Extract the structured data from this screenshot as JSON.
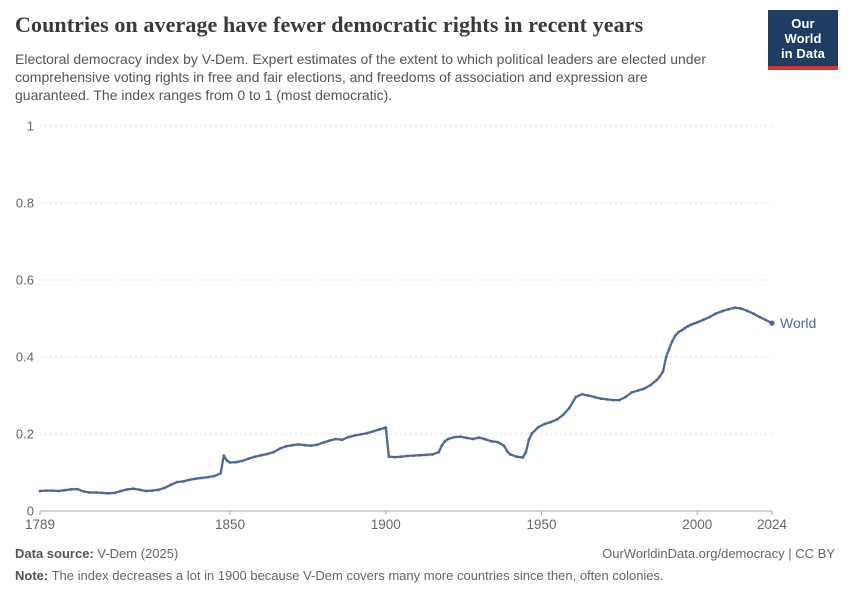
{
  "header": {
    "title": "Countries on average have fewer democratic rights in recent years",
    "subtitle_lines": [
      "Electoral democracy index by V-Dem. Expert estimates of the extent to which political leaders are elected under",
      "comprehensive voting rights in free and fair elections, and freedoms of association and expression are",
      "guaranteed. The index ranges from 0 to 1 (most democratic)."
    ],
    "logo": {
      "line1": "Our World",
      "line2": "in Data",
      "bg_color": "#1d3d63",
      "accent_color": "#d13832"
    }
  },
  "chart_data": {
    "type": "line",
    "title": "Countries on average have fewer democratic rights in recent years",
    "xlabel": "",
    "ylabel": "",
    "xlim": [
      1789,
      2024
    ],
    "ylim": [
      0,
      1
    ],
    "xticks": [
      1789,
      1850,
      1900,
      1950,
      2000,
      2024
    ],
    "yticks": [
      0,
      0.2,
      0.4,
      0.6,
      0.8,
      1
    ],
    "grid": "horizontal-dashed",
    "legend_position": "end-of-line",
    "colors": {
      "line": "#4c6a9c",
      "grid": "#dcdcdc",
      "axis": "#a8a8a8",
      "tick_label": "#666666"
    },
    "series": [
      {
        "name": "World",
        "color": "#4c6a9c",
        "points": [
          [
            1789,
            0.052
          ],
          [
            1791,
            0.053
          ],
          [
            1793,
            0.053
          ],
          [
            1795,
            0.052
          ],
          [
            1797,
            0.054
          ],
          [
            1799,
            0.056
          ],
          [
            1801,
            0.057
          ],
          [
            1803,
            0.051
          ],
          [
            1805,
            0.048
          ],
          [
            1807,
            0.048
          ],
          [
            1809,
            0.047
          ],
          [
            1811,
            0.046
          ],
          [
            1813,
            0.047
          ],
          [
            1815,
            0.052
          ],
          [
            1817,
            0.056
          ],
          [
            1819,
            0.058
          ],
          [
            1821,
            0.055
          ],
          [
            1823,
            0.052
          ],
          [
            1825,
            0.053
          ],
          [
            1827,
            0.055
          ],
          [
            1829,
            0.06
          ],
          [
            1831,
            0.068
          ],
          [
            1833,
            0.075
          ],
          [
            1835,
            0.077
          ],
          [
            1837,
            0.081
          ],
          [
            1839,
            0.084
          ],
          [
            1841,
            0.086
          ],
          [
            1843,
            0.088
          ],
          [
            1845,
            0.091
          ],
          [
            1847,
            0.098
          ],
          [
            1848,
            0.144
          ],
          [
            1849,
            0.131
          ],
          [
            1850,
            0.126
          ],
          [
            1852,
            0.127
          ],
          [
            1854,
            0.13
          ],
          [
            1856,
            0.136
          ],
          [
            1858,
            0.141
          ],
          [
            1860,
            0.145
          ],
          [
            1862,
            0.148
          ],
          [
            1864,
            0.153
          ],
          [
            1866,
            0.162
          ],
          [
            1868,
            0.168
          ],
          [
            1870,
            0.171
          ],
          [
            1872,
            0.173
          ],
          [
            1874,
            0.171
          ],
          [
            1876,
            0.17
          ],
          [
            1878,
            0.172
          ],
          [
            1880,
            0.178
          ],
          [
            1882,
            0.183
          ],
          [
            1884,
            0.187
          ],
          [
            1886,
            0.185
          ],
          [
            1888,
            0.192
          ],
          [
            1890,
            0.196
          ],
          [
            1892,
            0.199
          ],
          [
            1894,
            0.202
          ],
          [
            1896,
            0.207
          ],
          [
            1898,
            0.212
          ],
          [
            1900,
            0.217
          ],
          [
            1901,
            0.141
          ],
          [
            1903,
            0.14
          ],
          [
            1905,
            0.141
          ],
          [
            1907,
            0.143
          ],
          [
            1909,
            0.144
          ],
          [
            1911,
            0.145
          ],
          [
            1913,
            0.146
          ],
          [
            1915,
            0.147
          ],
          [
            1917,
            0.153
          ],
          [
            1918,
            0.17
          ],
          [
            1919,
            0.181
          ],
          [
            1920,
            0.187
          ],
          [
            1922,
            0.192
          ],
          [
            1924,
            0.193
          ],
          [
            1926,
            0.19
          ],
          [
            1928,
            0.187
          ],
          [
            1930,
            0.191
          ],
          [
            1932,
            0.186
          ],
          [
            1934,
            0.181
          ],
          [
            1936,
            0.179
          ],
          [
            1938,
            0.169
          ],
          [
            1939,
            0.155
          ],
          [
            1940,
            0.147
          ],
          [
            1942,
            0.141
          ],
          [
            1944,
            0.139
          ],
          [
            1945,
            0.153
          ],
          [
            1946,
            0.186
          ],
          [
            1947,
            0.202
          ],
          [
            1949,
            0.218
          ],
          [
            1951,
            0.226
          ],
          [
            1953,
            0.231
          ],
          [
            1955,
            0.238
          ],
          [
            1957,
            0.25
          ],
          [
            1959,
            0.268
          ],
          [
            1961,
            0.296
          ],
          [
            1963,
            0.303
          ],
          [
            1965,
            0.3
          ],
          [
            1967,
            0.296
          ],
          [
            1969,
            0.292
          ],
          [
            1971,
            0.29
          ],
          [
            1973,
            0.288
          ],
          [
            1975,
            0.288
          ],
          [
            1977,
            0.296
          ],
          [
            1979,
            0.308
          ],
          [
            1981,
            0.313
          ],
          [
            1983,
            0.318
          ],
          [
            1985,
            0.327
          ],
          [
            1987,
            0.34
          ],
          [
            1988,
            0.35
          ],
          [
            1989,
            0.362
          ],
          [
            1990,
            0.4
          ],
          [
            1991,
            0.421
          ],
          [
            1992,
            0.441
          ],
          [
            1993,
            0.456
          ],
          [
            1994,
            0.465
          ],
          [
            1995,
            0.469
          ],
          [
            1996,
            0.475
          ],
          [
            1997,
            0.48
          ],
          [
            1998,
            0.484
          ],
          [
            1999,
            0.487
          ],
          [
            2000,
            0.49
          ],
          [
            2002,
            0.497
          ],
          [
            2004,
            0.504
          ],
          [
            2006,
            0.513
          ],
          [
            2008,
            0.519
          ],
          [
            2010,
            0.524
          ],
          [
            2012,
            0.528
          ],
          [
            2014,
            0.526
          ],
          [
            2016,
            0.52
          ],
          [
            2018,
            0.513
          ],
          [
            2020,
            0.504
          ],
          [
            2022,
            0.496
          ],
          [
            2024,
            0.488
          ]
        ]
      }
    ],
    "end_label": "World"
  },
  "footer": {
    "source_label": "Data source:",
    "source_value": " V-Dem (2025)",
    "rights": "OurWorldinData.org/democracy | CC BY",
    "note_label": "Note:",
    "note_value": " The index decreases a lot in 1900 because V-Dem covers many more countries since then, often colonies."
  }
}
